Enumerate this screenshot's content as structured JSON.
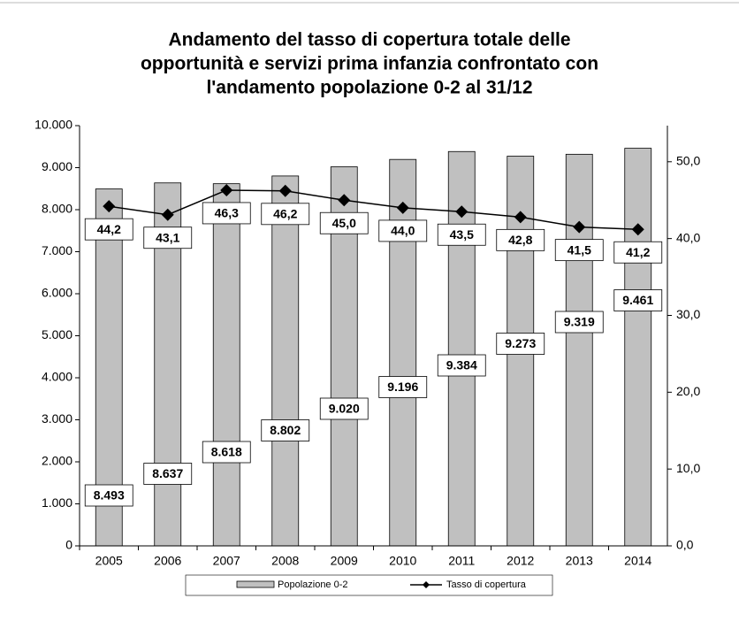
{
  "chart_data": {
    "type": "bar-line",
    "title": [
      "Andamento del tasso di copertura totale delle",
      "opportunità e servizi prima infanzia confrontato con",
      "l'andamento popolazione 0-2 al 31/12"
    ],
    "categories": [
      "2005",
      "2006",
      "2007",
      "2008",
      "2009",
      "2010",
      "2011",
      "2012",
      "2013",
      "2014"
    ],
    "series": [
      {
        "name": "Popolazione 0-2",
        "type": "bar",
        "color": "#c0c0c0",
        "values": [
          8493,
          8637,
          8618,
          8802,
          9020,
          9196,
          9384,
          9273,
          9319,
          9461
        ],
        "value_labels": [
          "8.493",
          "8.637",
          "8.618",
          "8.802",
          "9.020",
          "9.196",
          "9.384",
          "9.273",
          "9.319",
          "9.461"
        ]
      },
      {
        "name": "Tasso di copertura",
        "type": "line",
        "color": "#000000",
        "axis": "y2",
        "values": [
          44.2,
          43.1,
          46.3,
          46.2,
          45.0,
          44.0,
          43.5,
          42.8,
          41.5,
          41.2
        ],
        "value_labels": [
          "44,2",
          "43,1",
          "46,3",
          "46,2",
          "45,0",
          "44,0",
          "43,5",
          "42,8",
          "41,5",
          "41,2"
        ]
      }
    ],
    "ylim": [
      0,
      10000
    ],
    "yticks": [
      0,
      {
        "value": 1000,
        "label": "1.000"
      },
      {
        "value": 2000,
        "label": "2.000"
      },
      {
        "value": 3000,
        "label": "3.000"
      },
      {
        "value": 4000,
        "label": "4.000"
      },
      {
        "value": 5000,
        "label": "5.000"
      },
      {
        "value": 6000,
        "label": "6.000"
      },
      {
        "value": 7000,
        "label": "7.000"
      },
      {
        "value": 8000,
        "label": "8.000"
      },
      {
        "value": 9000,
        "label": "9.000"
      },
      {
        "value": 10000,
        "label": "10.000"
      }
    ],
    "y2lim": [
      0,
      54.7
    ],
    "y2ticks": [
      {
        "value": 0,
        "label": "0,0"
      },
      {
        "value": 10,
        "label": "10,0"
      },
      {
        "value": 20,
        "label": "20,0"
      },
      {
        "value": 30,
        "label": "30,0"
      },
      {
        "value": 40,
        "label": "40,0"
      },
      {
        "value": 50,
        "label": "50,0"
      }
    ],
    "legend": "bottom"
  }
}
